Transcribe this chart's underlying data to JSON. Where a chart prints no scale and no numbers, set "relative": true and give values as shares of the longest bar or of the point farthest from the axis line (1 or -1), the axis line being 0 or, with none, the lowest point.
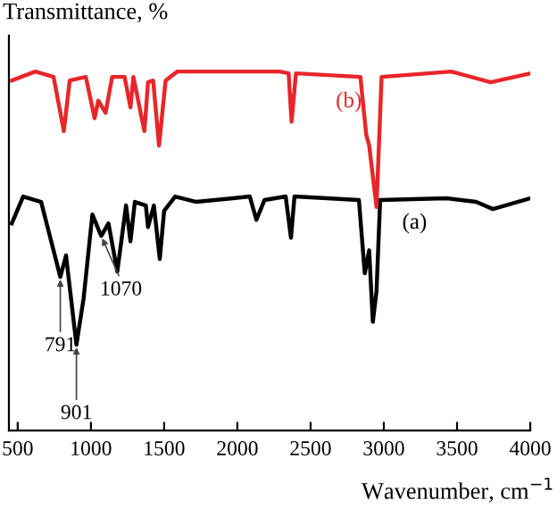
{
  "chart_data": {
    "type": "line",
    "relative": true,
    "ylabel": "Transmittance, %",
    "xlabel": "Wavenumber, cm$^{−1}$",
    "xlim": [
      440,
      4000
    ],
    "xticks": [
      500,
      1000,
      1500,
      2000,
      2500,
      3000,
      3500,
      4000
    ],
    "grid": false,
    "legend": false,
    "marker": "none",
    "line_style": "solid",
    "series": [
      {
        "name": "(a)",
        "color": "#000000",
        "x": [
          460,
          537,
          660,
          791,
          830,
          901,
          950,
          1010,
          1070,
          1120,
          1180,
          1240,
          1270,
          1300,
          1375,
          1390,
          1430,
          1470,
          1500,
          1575,
          1720,
          2085,
          2130,
          2185,
          2330,
          2366,
          2390,
          2830,
          2870,
          2900,
          2925,
          2950,
          2975,
          3430,
          3630,
          3745,
          4000
        ],
        "values": [
          0.577,
          0.652,
          0.637,
          0.428,
          0.488,
          0.239,
          0.368,
          0.602,
          0.542,
          0.577,
          0.443,
          0.627,
          0.527,
          0.637,
          0.627,
          0.567,
          0.627,
          0.478,
          0.612,
          0.652,
          0.637,
          0.652,
          0.587,
          0.642,
          0.652,
          0.537,
          0.652,
          0.642,
          0.438,
          0.502,
          0.303,
          0.388,
          0.642,
          0.647,
          0.637,
          0.617,
          0.647
        ]
      },
      {
        "name": "(b)",
        "color": "#e8262a",
        "x": [
          460,
          620,
          745,
          815,
          855,
          965,
          1025,
          1050,
          1100,
          1145,
          1230,
          1270,
          1290,
          1365,
          1390,
          1425,
          1465,
          1510,
          1590,
          2290,
          2350,
          2370,
          2400,
          2840,
          2880,
          2900,
          2950,
          2985,
          3460,
          3730,
          4000
        ],
        "values": [
          0.975,
          1,
          0.985,
          0.834,
          0.975,
          0.985,
          0.87,
          0.919,
          0.885,
          0.985,
          0.985,
          0.9,
          0.985,
          0.834,
          0.97,
          0.975,
          0.794,
          0.975,
          1,
          1,
          0.995,
          0.86,
          0.995,
          0.985,
          0.824,
          0.794,
          0.623,
          0.985,
          1,
          0.97,
          0.995
        ]
      }
    ],
    "annotations": [
      {
        "text": "791",
        "x": 791,
        "y": 0.428
      },
      {
        "text": "901",
        "x": 901,
        "y": 0.239
      },
      {
        "text": "1070",
        "x": 1070,
        "y": 0.542
      }
    ]
  }
}
